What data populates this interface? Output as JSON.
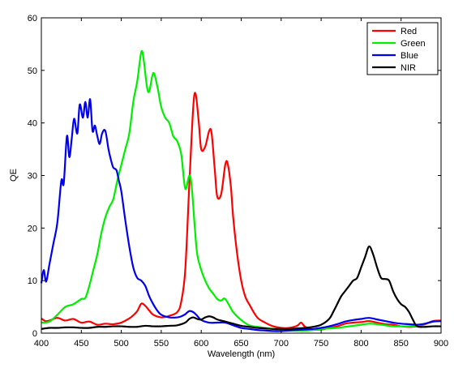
{
  "chart_data": {
    "type": "line",
    "xlabel": "Wavelength (nm)",
    "ylabel": "QE",
    "xlim": [
      400,
      900
    ],
    "ylim": [
      0,
      60
    ],
    "xticks": [
      400,
      450,
      500,
      550,
      600,
      650,
      700,
      750,
      800,
      850,
      900
    ],
    "yticks": [
      0,
      10,
      20,
      30,
      40,
      50,
      60
    ],
    "grid": false,
    "legend_position": "top-right",
    "series": [
      {
        "name": "Red",
        "color": "#ff0000",
        "x": [
          400,
          405,
          410,
          420,
          430,
          440,
          450,
          460,
          470,
          480,
          490,
          500,
          510,
          515,
          520,
          525,
          530,
          535,
          540,
          550,
          560,
          570,
          575,
          580,
          585,
          590,
          593,
          597,
          600,
          605,
          610,
          613,
          617,
          620,
          625,
          630,
          633,
          637,
          640,
          645,
          650,
          655,
          660,
          670,
          680,
          690,
          700,
          710,
          720,
          725,
          730,
          740,
          750,
          760,
          770,
          780,
          790,
          800,
          810,
          820,
          830,
          840,
          850,
          860,
          870,
          880,
          890,
          900
        ],
        "y": [
          2.8,
          2.3,
          2.4,
          2.9,
          2.4,
          2.7,
          2.0,
          2.2,
          1.6,
          1.8,
          1.7,
          2.0,
          2.8,
          3.4,
          4.2,
          5.6,
          5.2,
          4.3,
          3.5,
          3.0,
          3.3,
          4.0,
          6.0,
          12.0,
          28.0,
          43.0,
          45.5,
          40.0,
          35.0,
          35.5,
          38.5,
          38.0,
          31.0,
          26.0,
          26.5,
          32.0,
          32.3,
          28.0,
          22.0,
          15.0,
          10.0,
          7.0,
          5.5,
          3.0,
          2.0,
          1.3,
          1.0,
          1.0,
          1.4,
          2.0,
          1.2,
          0.7,
          0.7,
          1.0,
          1.3,
          1.8,
          2.0,
          2.1,
          2.3,
          2.0,
          1.7,
          1.6,
          1.3,
          1.2,
          1.3,
          1.7,
          2.3,
          2.4
        ]
      },
      {
        "name": "Green",
        "color": "#00ee00",
        "x": [
          400,
          410,
          420,
          430,
          440,
          450,
          455,
          460,
          465,
          470,
          475,
          480,
          485,
          490,
          495,
          500,
          505,
          510,
          515,
          520,
          525,
          528,
          532,
          535,
          540,
          545,
          550,
          555,
          560,
          565,
          570,
          575,
          580,
          585,
          588,
          592,
          595,
          600,
          605,
          610,
          615,
          620,
          625,
          630,
          640,
          650,
          660,
          670,
          680,
          690,
          700,
          710,
          720,
          730,
          740,
          750,
          760,
          770,
          780,
          790,
          800,
          810,
          820,
          830,
          840,
          850,
          860,
          870,
          880,
          890,
          900
        ],
        "y": [
          2.0,
          2.2,
          3.5,
          5.0,
          5.5,
          6.5,
          6.7,
          9.0,
          12.0,
          15.0,
          19.0,
          22.0,
          24.0,
          25.5,
          29.0,
          32.0,
          35.0,
          38.0,
          44.0,
          48.0,
          53.5,
          52.0,
          47.0,
          46.0,
          49.5,
          47.0,
          43.0,
          41.0,
          40.0,
          37.5,
          36.5,
          34.0,
          27.5,
          30.0,
          28.0,
          20.0,
          15.0,
          12.0,
          10.0,
          8.5,
          7.5,
          6.5,
          6.2,
          6.5,
          4.0,
          2.5,
          1.5,
          1.2,
          1.0,
          0.8,
          0.6,
          0.5,
          0.5,
          0.5,
          0.6,
          0.8,
          0.9,
          1.0,
          1.2,
          1.4,
          1.6,
          1.8,
          1.7,
          1.5,
          1.3,
          1.3,
          1.3,
          1.4,
          1.8,
          2.2,
          2.3
        ]
      },
      {
        "name": "Blue",
        "color": "#0000ee",
        "x": [
          400,
          403,
          406,
          410,
          415,
          420,
          425,
          428,
          432,
          435,
          438,
          441,
          445,
          448,
          452,
          455,
          458,
          461,
          464,
          467,
          470,
          473,
          476,
          480,
          484,
          487,
          490,
          494,
          497,
          500,
          505,
          510,
          515,
          520,
          525,
          530,
          535,
          540,
          545,
          550,
          560,
          570,
          575,
          580,
          585,
          590,
          595,
          600,
          610,
          620,
          630,
          640,
          650,
          660,
          670,
          680,
          690,
          700,
          710,
          720,
          730,
          740,
          750,
          760,
          770,
          780,
          790,
          800,
          810,
          820,
          830,
          840,
          850,
          860,
          870,
          880,
          890,
          900
        ],
        "y": [
          9.5,
          12.0,
          9.8,
          13.0,
          17.0,
          21.0,
          29.0,
          28.5,
          37.5,
          33.5,
          37.0,
          40.8,
          38.0,
          43.5,
          41.0,
          44.0,
          41.0,
          44.5,
          38.5,
          39.5,
          37.5,
          36.0,
          38.0,
          38.5,
          35.0,
          33.0,
          31.5,
          31.0,
          29.0,
          27.0,
          21.5,
          16.5,
          12.5,
          10.5,
          10.0,
          9.0,
          7.0,
          5.5,
          4.3,
          3.5,
          3.0,
          3.0,
          3.2,
          3.6,
          4.2,
          4.0,
          3.3,
          2.5,
          2.0,
          2.0,
          2.0,
          1.5,
          1.0,
          0.8,
          0.6,
          0.5,
          0.4,
          0.4,
          0.5,
          0.6,
          0.7,
          0.8,
          1.0,
          1.3,
          1.7,
          2.2,
          2.5,
          2.7,
          2.9,
          2.6,
          2.3,
          2.0,
          1.8,
          1.7,
          1.6,
          1.8,
          2.2,
          2.3
        ]
      },
      {
        "name": "NIR",
        "color": "#000000",
        "x": [
          400,
          410,
          420,
          430,
          440,
          450,
          460,
          470,
          480,
          490,
          500,
          510,
          520,
          530,
          540,
          550,
          560,
          570,
          580,
          585,
          590,
          595,
          600,
          605,
          610,
          615,
          620,
          630,
          640,
          650,
          660,
          670,
          680,
          690,
          700,
          710,
          720,
          730,
          740,
          750,
          760,
          765,
          770,
          775,
          780,
          785,
          790,
          795,
          800,
          805,
          810,
          815,
          820,
          825,
          830,
          835,
          840,
          845,
          850,
          855,
          860,
          865,
          870,
          880,
          890,
          900
        ],
        "y": [
          0.8,
          1.0,
          1.0,
          1.1,
          1.1,
          1.0,
          1.0,
          1.2,
          1.2,
          1.3,
          1.3,
          1.2,
          1.2,
          1.4,
          1.3,
          1.3,
          1.4,
          1.5,
          2.0,
          2.7,
          3.0,
          2.7,
          2.6,
          3.0,
          3.2,
          3.0,
          2.6,
          2.2,
          1.8,
          1.4,
          1.2,
          1.0,
          0.9,
          0.8,
          0.8,
          0.8,
          0.9,
          1.0,
          1.2,
          1.6,
          2.7,
          4.0,
          5.5,
          7.0,
          8.0,
          9.0,
          10.0,
          10.5,
          12.5,
          14.5,
          16.5,
          15.0,
          12.5,
          10.5,
          10.3,
          10.0,
          8.0,
          6.5,
          5.5,
          5.0,
          4.0,
          2.5,
          1.3,
          1.2,
          1.3,
          1.3
        ]
      }
    ]
  }
}
